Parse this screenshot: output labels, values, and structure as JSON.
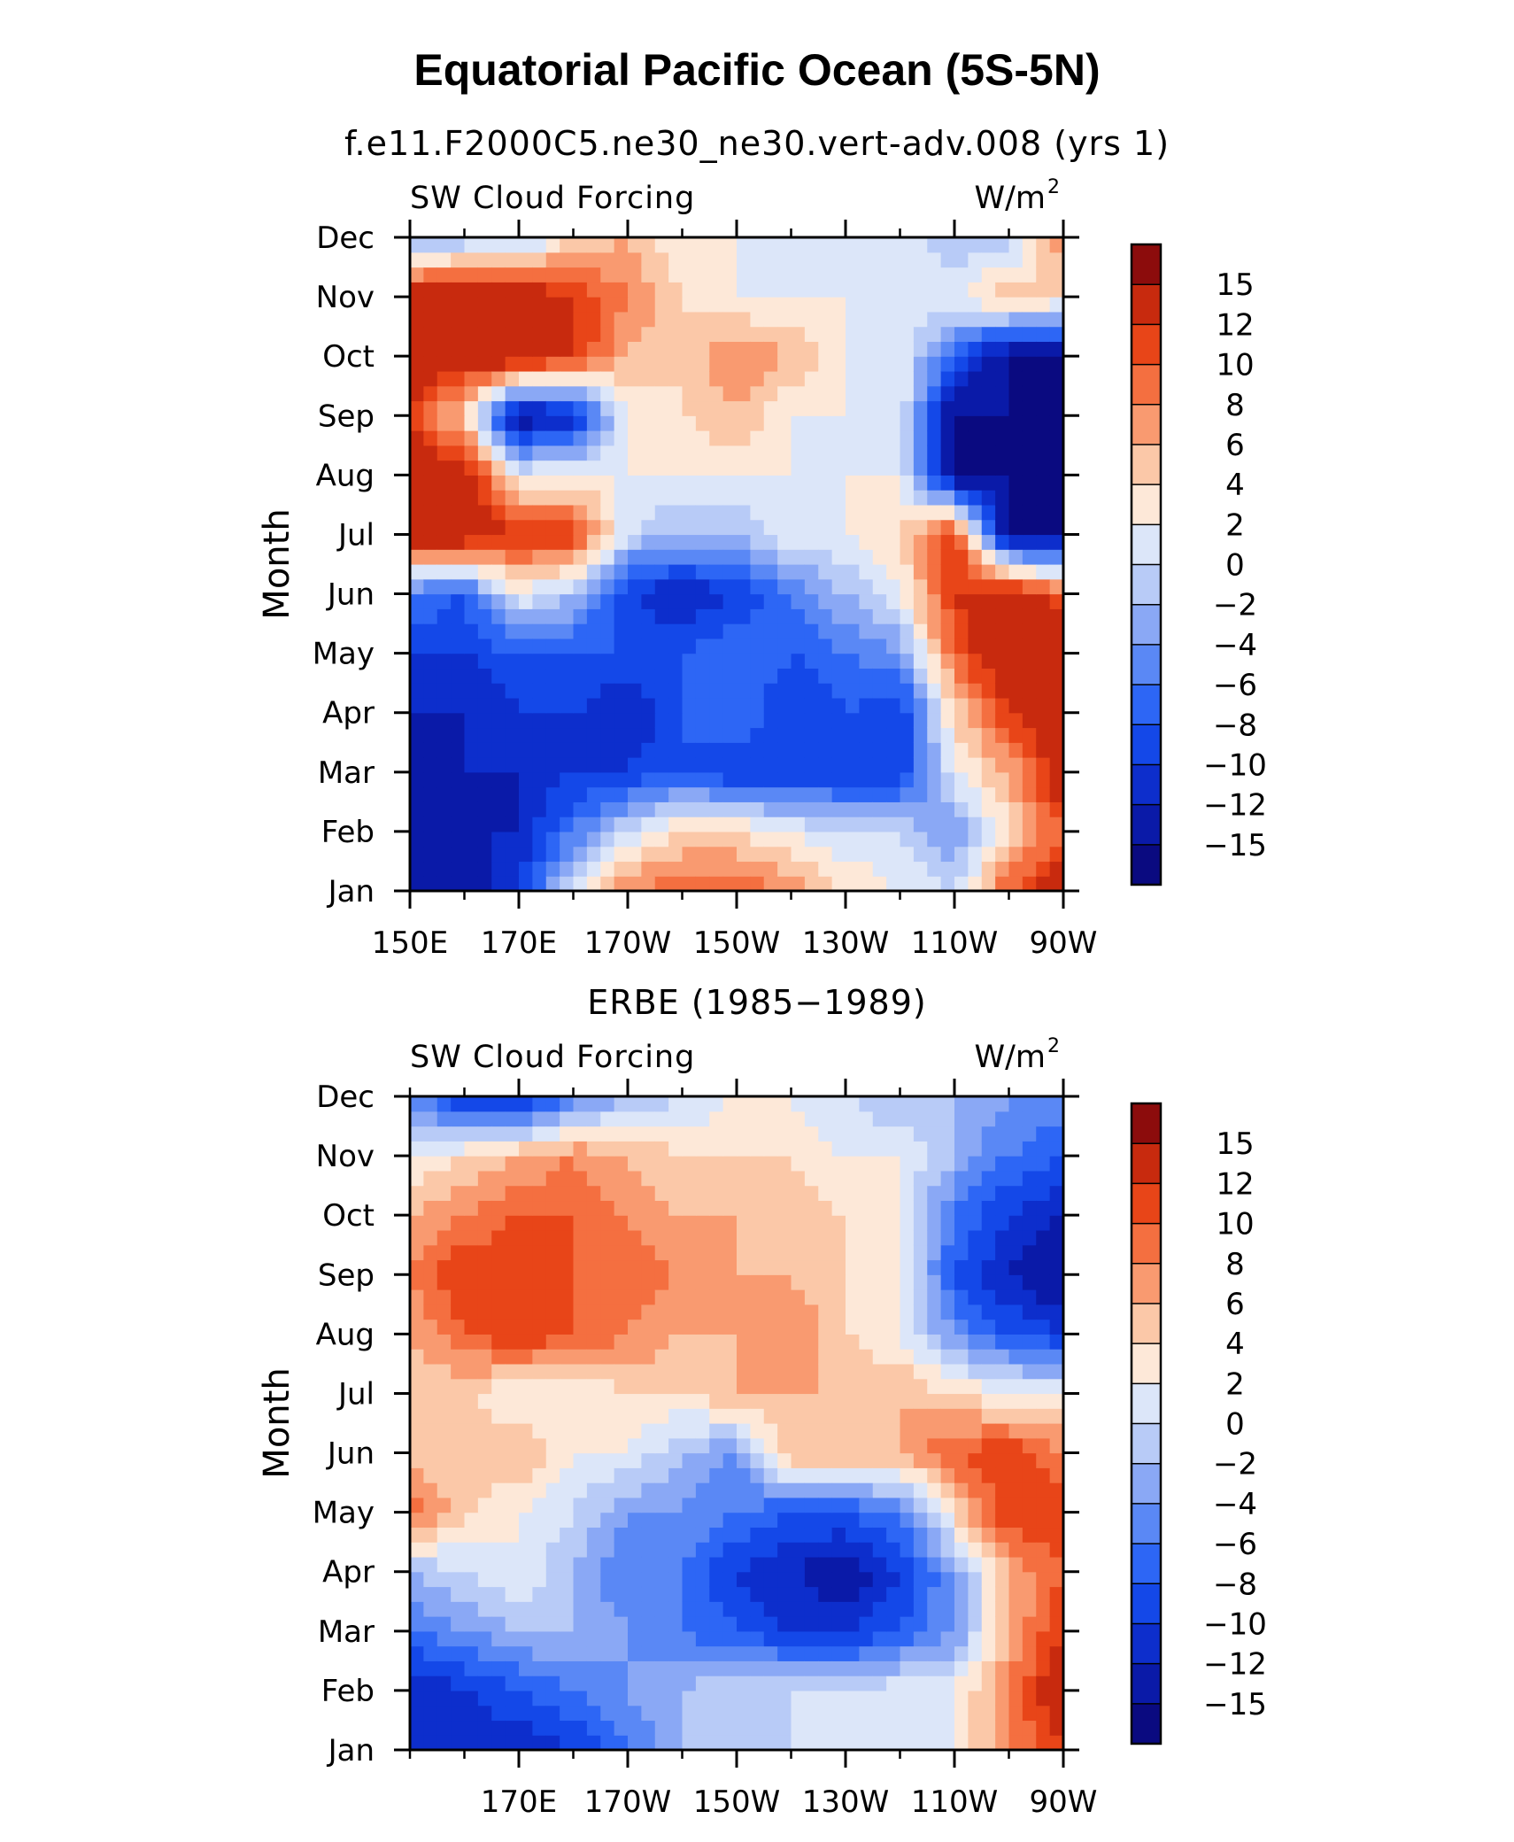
{
  "page_title": "Equatorial Pacific Ocean (5S-5N)",
  "colors": [
    "#0a0a80",
    "#0a1aa8",
    "#0d2ecc",
    "#1448e8",
    "#2d66f5",
    "#5a88f5",
    "#8aa8f5",
    "#b8cbf7",
    "#dce6f9",
    "#fde8d8",
    "#fbc8a8",
    "#f99a70",
    "#f46f40",
    "#e84518",
    "#c82a0e",
    "#8c0c0c"
  ],
  "chart_data": [
    {
      "type": "heatmap",
      "title": "f.e11.F2000C5.ne30_ne30.vert-adv.008 (yrs 1)",
      "left_label": "SW Cloud Forcing",
      "right_label": "W/m",
      "right_label_sup": "2",
      "xlabel": "",
      "ylabel": "Month",
      "x_ticks": [
        "150E",
        "170E",
        "170W",
        "150W",
        "130W",
        "110W",
        "90W"
      ],
      "y_ticks": [
        "Jan",
        "Feb",
        "Mar",
        "Apr",
        "May",
        "Jun",
        "Jul",
        "Aug",
        "Sep",
        "Oct",
        "Nov",
        "Dec"
      ],
      "colorbar_labels": [
        "15",
        "12",
        "10",
        "8",
        "6",
        "4",
        "2",
        "0",
        "−2",
        "−4",
        "−6",
        "−8",
        "−10",
        "−12",
        "−15"
      ],
      "x_range": [
        "150E",
        "90W"
      ],
      "grid_cols": [
        "150E",
        "160E",
        "170E",
        "180",
        "170W",
        "160W",
        "150W",
        "140W",
        "130W",
        "120W",
        "110W",
        "100W",
        "90W"
      ],
      "values": [
        [
          -15,
          -15,
          -10,
          2,
          8,
          10,
          10,
          8,
          4,
          2,
          0,
          10,
          15
        ],
        [
          -15,
          -12,
          -12,
          -6,
          0,
          4,
          4,
          2,
          0,
          0,
          -4,
          4,
          10
        ],
        [
          -15,
          -12,
          -12,
          -10,
          -10,
          -8,
          -10,
          -10,
          -10,
          -10,
          2,
          6,
          15
        ],
        [
          -12,
          -12,
          -10,
          -10,
          -12,
          -8,
          -6,
          -10,
          -8,
          -10,
          4,
          12,
          15
        ],
        [
          -10,
          -10,
          -8,
          -8,
          -8,
          -8,
          -6,
          -8,
          -6,
          -4,
          10,
          15,
          15
        ],
        [
          -6,
          -8,
          2,
          -2,
          -10,
          -12,
          -10,
          -6,
          -2,
          2,
          12,
          15,
          10
        ],
        [
          15,
          15,
          12,
          12,
          0,
          -2,
          -2,
          2,
          2,
          4,
          12,
          -15,
          -15
        ],
        [
          15,
          15,
          2,
          2,
          2,
          2,
          2,
          2,
          2,
          2,
          -15,
          -15,
          -15
        ],
        [
          12,
          4,
          -15,
          -12,
          2,
          4,
          6,
          2,
          2,
          2,
          -15,
          -15,
          -15
        ],
        [
          15,
          15,
          15,
          12,
          6,
          4,
          8,
          6,
          2,
          2,
          -8,
          -15,
          -15
        ],
        [
          15,
          15,
          15,
          12,
          8,
          4,
          2,
          2,
          2,
          2,
          2,
          6,
          4
        ],
        [
          -4,
          -2,
          -2,
          4,
          6,
          2,
          2,
          2,
          2,
          2,
          -2,
          -2,
          8
        ]
      ]
    },
    {
      "type": "heatmap",
      "title": "ERBE (1985−1989)",
      "left_label": "SW Cloud Forcing",
      "right_label": "W/m",
      "right_label_sup": "2",
      "xlabel": "",
      "ylabel": "Month",
      "x_ticks": [
        "170E",
        "170W",
        "150W",
        "130W",
        "110W",
        "90W"
      ],
      "y_ticks": [
        "Jan",
        "Feb",
        "Mar",
        "Apr",
        "May",
        "Jun",
        "Jul",
        "Aug",
        "Sep",
        "Oct",
        "Nov",
        "Dec"
      ],
      "colorbar_labels": [
        "15",
        "12",
        "10",
        "8",
        "6",
        "4",
        "2",
        "0",
        "−2",
        "−4",
        "−6",
        "−8",
        "−10",
        "−12",
        "−15"
      ],
      "x_range": [
        "150E",
        "90W"
      ],
      "grid_cols": [
        "150E",
        "160E",
        "170E",
        "180",
        "170W",
        "160W",
        "150W",
        "140W",
        "130W",
        "120W",
        "110W",
        "100W",
        "90W"
      ],
      "values": [
        [
          -12,
          -12,
          -12,
          -10,
          -6,
          -2,
          0,
          0,
          2,
          2,
          2,
          8,
          12
        ],
        [
          -12,
          -10,
          -8,
          -6,
          -4,
          -2,
          0,
          0,
          0,
          2,
          2,
          8,
          15
        ],
        [
          -6,
          -4,
          -2,
          -2,
          -4,
          -6,
          -8,
          -10,
          -10,
          -8,
          -4,
          6,
          12
        ],
        [
          -2,
          0,
          2,
          -2,
          -6,
          -6,
          -10,
          -12,
          -14,
          -10,
          -4,
          6,
          10
        ],
        [
          10,
          4,
          2,
          0,
          -4,
          -4,
          -6,
          -8,
          -8,
          -6,
          4,
          12,
          12
        ],
        [
          4,
          6,
          6,
          2,
          2,
          -2,
          -4,
          6,
          6,
          6,
          10,
          12,
          8
        ],
        [
          4,
          4,
          2,
          2,
          4,
          4,
          6,
          6,
          6,
          6,
          4,
          2,
          2
        ],
        [
          6,
          10,
          12,
          10,
          8,
          6,
          6,
          8,
          4,
          2,
          -4,
          -8,
          -10
        ],
        [
          8,
          12,
          12,
          10,
          10,
          8,
          6,
          6,
          4,
          2,
          -8,
          -12,
          -15
        ],
        [
          6,
          8,
          10,
          10,
          8,
          6,
          6,
          6,
          4,
          2,
          -6,
          -10,
          -12
        ],
        [
          2,
          4,
          6,
          8,
          6,
          4,
          4,
          4,
          2,
          2,
          -2,
          -6,
          -8
        ],
        [
          -4,
          -12,
          -12,
          -6,
          -2,
          0,
          2,
          2,
          0,
          -2,
          -2,
          -4,
          -4
        ]
      ]
    }
  ]
}
